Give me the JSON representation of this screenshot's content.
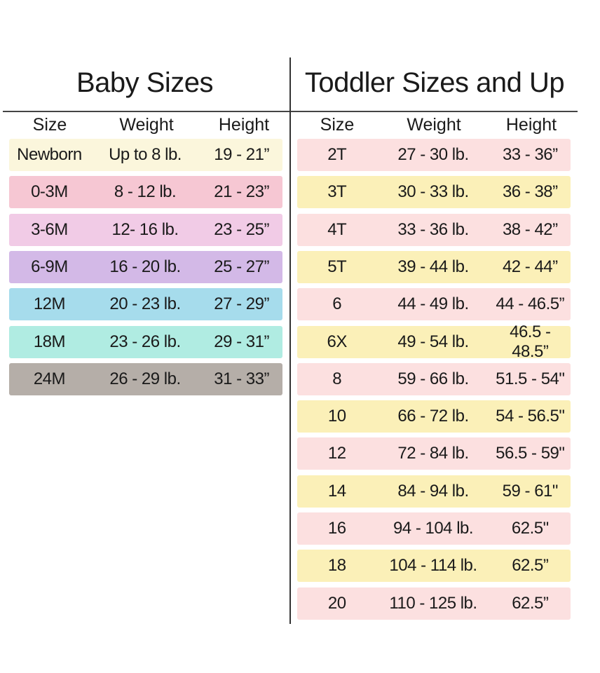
{
  "baby": {
    "title": "Baby Sizes",
    "headers": [
      "Size",
      "Weight",
      "Height"
    ],
    "rows": [
      {
        "size": "Newborn",
        "weight": "Up to 8 lb.",
        "height": "19 - 21”",
        "color": "#fbf6dc"
      },
      {
        "size": "0-3M",
        "weight": "8 - 12 lb.",
        "height": "21 - 23”",
        "color": "#f6c7d3"
      },
      {
        "size": "3-6M",
        "weight": "12- 16 lb.",
        "height": "23 - 25”",
        "color": "#f1cbe6"
      },
      {
        "size": "6-9M",
        "weight": "16 - 20 lb.",
        "height": "25 - 27”",
        "color": "#d3b9e7"
      },
      {
        "size": "12M",
        "weight": "20 - 23 lb.",
        "height": "27 - 29”",
        "color": "#a6dcec"
      },
      {
        "size": "18M",
        "weight": "23 - 26 lb.",
        "height": "29 - 31”",
        "color": "#b0ece2"
      },
      {
        "size": "24M",
        "weight": "26 - 29 lb.",
        "height": "31 - 33”",
        "color": "#b5aea8"
      }
    ]
  },
  "toddler": {
    "title": "Toddler Sizes and Up",
    "headers": [
      "Size",
      "Weight",
      "Height"
    ],
    "rows": [
      {
        "size": "2T",
        "weight": "27 - 30 lb.",
        "height": "33 - 36”",
        "color": "#fce0e0"
      },
      {
        "size": "3T",
        "weight": "30 - 33 lb.",
        "height": "36 - 38”",
        "color": "#fbf0b8"
      },
      {
        "size": "4T",
        "weight": "33 - 36 lb.",
        "height": "38 - 42”",
        "color": "#fce0e0"
      },
      {
        "size": "5T",
        "weight": "39 - 44 lb.",
        "height": "42 - 44”",
        "color": "#fbf0b8"
      },
      {
        "size": "6",
        "weight": "44 - 49 lb.",
        "height": "44 - 46.5”",
        "color": "#fce0e0"
      },
      {
        "size": "6X",
        "weight": "49 - 54 lb.",
        "height": "46.5 - 48.5”",
        "color": "#fbf0b8"
      },
      {
        "size": "8",
        "weight": "59 - 66 lb.",
        "height": "51.5 - 54\"",
        "color": "#fce0e0"
      },
      {
        "size": "10",
        "weight": "66 - 72 lb.",
        "height": "54 - 56.5\"",
        "color": "#fbf0b8"
      },
      {
        "size": "12",
        "weight": "72 - 84 lb.",
        "height": "56.5 - 59\"",
        "color": "#fce0e0"
      },
      {
        "size": "14",
        "weight": "84 - 94 lb.",
        "height": "59 - 61\"",
        "color": "#fbf0b8"
      },
      {
        "size": "16",
        "weight": "94 - 104 lb.",
        "height": "62.5\"",
        "color": "#fce0e0"
      },
      {
        "size": "18",
        "weight": "104 - 114 lb.",
        "height": "62.5”",
        "color": "#fbf0b8"
      },
      {
        "size": "20",
        "weight": "110 - 125 lb.",
        "height": "62.5”",
        "color": "#fce0e0"
      }
    ]
  }
}
